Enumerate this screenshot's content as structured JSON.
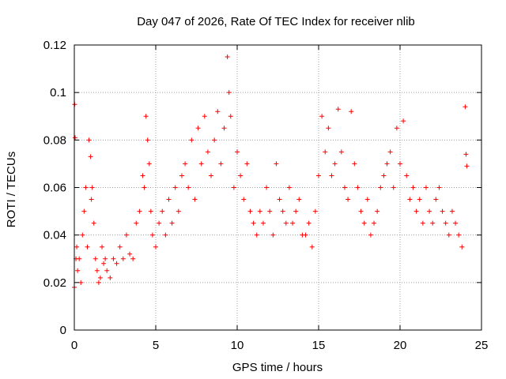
{
  "chart_data": {
    "type": "scatter",
    "title": "Day 047 of 2026, Rate Of TEC Index for receiver nlib",
    "xlabel": "GPS time / hours",
    "ylabel": "ROTI / TECUs",
    "xlim": [
      0,
      25
    ],
    "ylim": [
      0,
      0.12
    ],
    "xticks": [
      "0",
      "5",
      "10",
      "15",
      "20",
      "25"
    ],
    "yticks": [
      "0",
      "0.02",
      "0.04",
      "0.06",
      "0.08",
      "0.1",
      "0.12"
    ],
    "grid": true,
    "marker": "plus",
    "color": "#ff0000",
    "series": [
      {
        "x": [
          0.0,
          0.02,
          0.05,
          0.1,
          0.15,
          0.2,
          0.3,
          0.4,
          0.5,
          0.6,
          0.7,
          0.8,
          0.9,
          1.0,
          1.05,
          1.1,
          1.2,
          1.3,
          1.4,
          1.5,
          1.6,
          1.7,
          1.8,
          1.9,
          2.0,
          2.2,
          2.4,
          2.6,
          2.8,
          3.0,
          3.2,
          3.4,
          3.6,
          3.8,
          4.0,
          4.2,
          4.3,
          4.4,
          4.5,
          4.6,
          4.7,
          4.8,
          5.0,
          5.2,
          5.4,
          5.6,
          5.8,
          6.0,
          6.2,
          6.4,
          6.6,
          6.8,
          7.0,
          7.2,
          7.4,
          7.6,
          7.8,
          8.0,
          8.2,
          8.4,
          8.6,
          8.8,
          9.0,
          9.2,
          9.4,
          9.5,
          9.6,
          9.8,
          10.0,
          10.2,
          10.4,
          10.6,
          10.8,
          11.0,
          11.2,
          11.4,
          11.6,
          11.8,
          12.0,
          12.2,
          12.4,
          12.6,
          12.8,
          13.0,
          13.2,
          13.4,
          13.6,
          13.8,
          14.0,
          14.2,
          14.4,
          14.6,
          14.8,
          15.0,
          15.2,
          15.4,
          15.6,
          15.8,
          16.0,
          16.2,
          16.4,
          16.6,
          16.8,
          17.0,
          17.2,
          17.4,
          17.6,
          17.8,
          18.0,
          18.2,
          18.4,
          18.6,
          18.8,
          19.0,
          19.2,
          19.4,
          19.6,
          19.8,
          20.0,
          20.2,
          20.4,
          20.6,
          20.8,
          21.0,
          21.2,
          21.4,
          21.6,
          21.8,
          22.0,
          22.2,
          22.4,
          22.6,
          22.8,
          23.0,
          23.2,
          23.4,
          23.6,
          23.8,
          24.0,
          24.05,
          24.1
        ],
        "y": [
          0.018,
          0.095,
          0.081,
          0.03,
          0.035,
          0.025,
          0.03,
          0.02,
          0.04,
          0.05,
          0.06,
          0.035,
          0.08,
          0.073,
          0.055,
          0.06,
          0.045,
          0.03,
          0.025,
          0.02,
          0.022,
          0.035,
          0.028,
          0.03,
          0.025,
          0.022,
          0.03,
          0.028,
          0.035,
          0.03,
          0.04,
          0.032,
          0.03,
          0.045,
          0.05,
          0.065,
          0.06,
          0.09,
          0.08,
          0.07,
          0.05,
          0.04,
          0.035,
          0.045,
          0.05,
          0.04,
          0.055,
          0.045,
          0.06,
          0.05,
          0.065,
          0.07,
          0.06,
          0.08,
          0.055,
          0.085,
          0.07,
          0.09,
          0.075,
          0.065,
          0.08,
          0.092,
          0.07,
          0.085,
          0.115,
          0.1,
          0.09,
          0.06,
          0.075,
          0.065,
          0.055,
          0.07,
          0.05,
          0.045,
          0.04,
          0.05,
          0.045,
          0.06,
          0.05,
          0.04,
          0.07,
          0.055,
          0.05,
          0.045,
          0.06,
          0.045,
          0.05,
          0.055,
          0.04,
          0.04,
          0.045,
          0.035,
          0.05,
          0.065,
          0.09,
          0.075,
          0.085,
          0.065,
          0.07,
          0.093,
          0.075,
          0.06,
          0.055,
          0.092,
          0.07,
          0.06,
          0.05,
          0.045,
          0.055,
          0.04,
          0.045,
          0.05,
          0.06,
          0.065,
          0.07,
          0.075,
          0.06,
          0.085,
          0.07,
          0.088,
          0.065,
          0.055,
          0.06,
          0.05,
          0.055,
          0.045,
          0.06,
          0.05,
          0.045,
          0.055,
          0.06,
          0.05,
          0.045,
          0.04,
          0.05,
          0.045,
          0.04,
          0.035,
          0.094,
          0.074,
          0.069
        ]
      }
    ]
  }
}
